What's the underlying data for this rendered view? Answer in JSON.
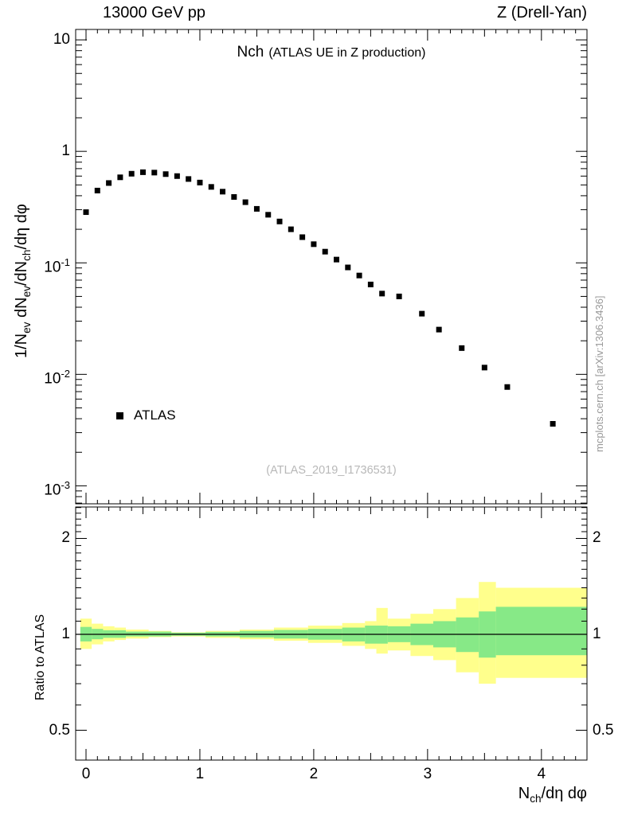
{
  "header": {
    "left_label": "13000 GeV pp",
    "right_label": "Z (Drell-Yan)"
  },
  "title": {
    "main": "Nch",
    "suffix": "(ATLAS UE in Z production)"
  },
  "legend": {
    "series_label": "ATLAS",
    "marker": "black-square"
  },
  "watermarks": {
    "analysis_id": "(ATLAS_2019_I1736531)",
    "side_text": "mcplots.cern.ch [arXiv:1306.3436]"
  },
  "colors": {
    "marker": "#000000",
    "band_outer": "#FFFF8C",
    "band_inner": "#87E987",
    "ratio_line": "#000000"
  },
  "chart_data": {
    "type": "scatter",
    "title": "Nch (ATLAS UE in Z production)",
    "xlabel": "N_{ch}/dη dφ",
    "x": {
      "min": -0.091,
      "max": 4.4,
      "major_ticks": [
        0,
        1,
        2,
        3,
        4
      ],
      "mid_step": 0.5,
      "minor_step": 0.1
    },
    "top_panel": {
      "ylabel": "1/N_{ev} dN_{ev}/dN_{ch}/dη dφ",
      "yscale": "log",
      "ylim": [
        0.00069,
        12.4
      ],
      "yticks": [
        {
          "label": "10",
          "value": 10
        },
        {
          "label": "1",
          "value": 1
        },
        {
          "label": "10^{-1}",
          "value": 0.1
        },
        {
          "label": "10^{-2}",
          "value": 0.01
        },
        {
          "label": "10^{-3}",
          "value": 0.001
        }
      ],
      "series": [
        {
          "name": "ATLAS",
          "marker": "square",
          "color": "#000000",
          "points": [
            [
              0.0,
              0.285
            ],
            [
              0.1,
              0.445
            ],
            [
              0.2,
              0.52
            ],
            [
              0.3,
              0.585
            ],
            [
              0.4,
              0.63
            ],
            [
              0.5,
              0.65
            ],
            [
              0.6,
              0.645
            ],
            [
              0.7,
              0.625
            ],
            [
              0.8,
              0.6
            ],
            [
              0.9,
              0.565
            ],
            [
              1.0,
              0.525
            ],
            [
              1.1,
              0.48
            ],
            [
              1.2,
              0.435
            ],
            [
              1.3,
              0.39
            ],
            [
              1.4,
              0.35
            ],
            [
              1.5,
              0.305
            ],
            [
              1.6,
              0.27
            ],
            [
              1.7,
              0.235
            ],
            [
              1.8,
              0.2
            ],
            [
              1.9,
              0.17
            ],
            [
              2.0,
              0.147
            ],
            [
              2.1,
              0.126
            ],
            [
              2.2,
              0.107
            ],
            [
              2.3,
              0.091
            ],
            [
              2.4,
              0.077
            ],
            [
              2.5,
              0.064
            ],
            [
              2.6,
              0.053
            ],
            [
              2.75,
              0.05
            ],
            [
              2.95,
              0.035
            ],
            [
              3.1,
              0.0252
            ],
            [
              3.3,
              0.0172
            ],
            [
              3.5,
              0.0115
            ],
            [
              3.7,
              0.0077
            ],
            [
              4.1,
              0.0036
            ]
          ]
        }
      ]
    },
    "ratio_panel": {
      "ylabel": "Ratio to ATLAS",
      "yscale": "log",
      "ylim": [
        0.403,
        2.51
      ],
      "yticks": [
        {
          "label": "2",
          "value": 2
        },
        {
          "label": "1",
          "value": 1
        },
        {
          "label": "0.5",
          "value": 0.5
        }
      ],
      "reference_line": 1,
      "bands": {
        "outer": {
          "color": "#FFFF8C",
          "bins": [
            [
              -0.05,
              0.05,
              0.9,
              1.12
            ],
            [
              0.05,
              0.15,
              0.93,
              1.08
            ],
            [
              0.15,
              0.25,
              0.95,
              1.06
            ],
            [
              0.25,
              0.35,
              0.96,
              1.05
            ],
            [
              0.35,
              0.55,
              0.97,
              1.035
            ],
            [
              0.55,
              0.75,
              0.98,
              1.025
            ],
            [
              0.75,
              1.05,
              0.985,
              1.015
            ],
            [
              1.05,
              1.35,
              0.975,
              1.025
            ],
            [
              1.35,
              1.65,
              0.965,
              1.035
            ],
            [
              1.65,
              1.95,
              0.955,
              1.05
            ],
            [
              1.95,
              2.25,
              0.94,
              1.065
            ],
            [
              2.25,
              2.45,
              0.92,
              1.085
            ],
            [
              2.45,
              2.55,
              0.9,
              1.1
            ],
            [
              2.55,
              2.65,
              0.87,
              1.21
            ],
            [
              2.65,
              2.85,
              0.89,
              1.12
            ],
            [
              2.85,
              3.05,
              0.855,
              1.16
            ],
            [
              3.05,
              3.25,
              0.83,
              1.2
            ],
            [
              3.25,
              3.45,
              0.76,
              1.3
            ],
            [
              3.45,
              3.6,
              0.7,
              1.46
            ],
            [
              3.6,
              4.4,
              0.73,
              1.4
            ]
          ]
        },
        "inner": {
          "color": "#87E987",
          "bins": [
            [
              -0.05,
              0.05,
              0.95,
              1.055
            ],
            [
              0.05,
              0.15,
              0.965,
              1.04
            ],
            [
              0.15,
              0.35,
              0.975,
              1.03
            ],
            [
              0.35,
              0.75,
              0.985,
              1.02
            ],
            [
              0.75,
              1.05,
              0.99,
              1.012
            ],
            [
              1.05,
              1.35,
              0.985,
              1.018
            ],
            [
              1.35,
              1.65,
              0.978,
              1.025
            ],
            [
              1.65,
              1.95,
              0.97,
              1.032
            ],
            [
              1.95,
              2.25,
              0.962,
              1.04
            ],
            [
              2.25,
              2.45,
              0.95,
              1.05
            ],
            [
              2.45,
              2.65,
              0.935,
              1.065
            ],
            [
              2.65,
              2.85,
              0.945,
              1.06
            ],
            [
              2.85,
              3.05,
              0.925,
              1.08
            ],
            [
              3.05,
              3.25,
              0.91,
              1.1
            ],
            [
              3.25,
              3.45,
              0.88,
              1.13
            ],
            [
              3.45,
              3.6,
              0.845,
              1.18
            ],
            [
              3.6,
              4.4,
              0.86,
              1.22
            ]
          ]
        }
      }
    }
  }
}
